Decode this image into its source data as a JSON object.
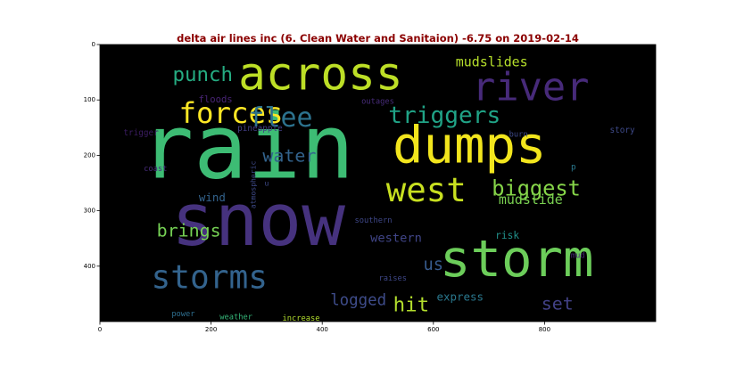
{
  "chart_data": {
    "type": "wordcloud",
    "title": "delta air lines inc (6. Clean Water and Sanitaion) -6.75 on 2019-02-14",
    "title_color": "#8b0000",
    "background": "#000000",
    "xlim": [
      0,
      1000
    ],
    "ylim": [
      500,
      0
    ],
    "x_ticks": [
      0,
      200,
      400,
      600,
      800
    ],
    "y_ticks": [
      0,
      100,
      200,
      300,
      400
    ],
    "words": [
      {
        "text": "rain",
        "x": 265,
        "y": 185,
        "size": 160,
        "color": "#3dbc74"
      },
      {
        "text": "snow",
        "x": 285,
        "y": 318,
        "size": 130,
        "color": "#46327e"
      },
      {
        "text": "dumps",
        "x": 665,
        "y": 182,
        "size": 92,
        "color": "#f2e51d"
      },
      {
        "text": "storm",
        "x": 750,
        "y": 387,
        "size": 92,
        "color": "#6ccd5a"
      },
      {
        "text": "across",
        "x": 397,
        "y": 55,
        "size": 82,
        "color": "#bddf26"
      },
      {
        "text": "river",
        "x": 775,
        "y": 78,
        "size": 70,
        "color": "#472a7a"
      },
      {
        "text": "west",
        "x": 587,
        "y": 262,
        "size": 60,
        "color": "#c8e020"
      },
      {
        "text": "storms",
        "x": 197,
        "y": 420,
        "size": 58,
        "color": "#33638d"
      },
      {
        "text": "forces",
        "x": 236,
        "y": 124,
        "size": 52,
        "color": "#fde725"
      },
      {
        "text": "flee",
        "x": 325,
        "y": 133,
        "size": 48,
        "color": "#2c728e"
      },
      {
        "text": "triggers",
        "x": 620,
        "y": 129,
        "size": 42,
        "color": "#20a386"
      },
      {
        "text": "biggest",
        "x": 785,
        "y": 260,
        "size": 38,
        "color": "#86d549"
      },
      {
        "text": "punch",
        "x": 185,
        "y": 55,
        "size": 36,
        "color": "#25ac82"
      },
      {
        "text": "water",
        "x": 341,
        "y": 200,
        "size": 32,
        "color": "#33638d"
      },
      {
        "text": "brings",
        "x": 160,
        "y": 335,
        "size": 32,
        "color": "#75d054"
      },
      {
        "text": "hit",
        "x": 560,
        "y": 470,
        "size": 36,
        "color": "#b2dd2d"
      },
      {
        "text": "set",
        "x": 823,
        "y": 467,
        "size": 32,
        "color": "#424186"
      },
      {
        "text": "us",
        "x": 600,
        "y": 398,
        "size": 30,
        "color": "#375b8d"
      },
      {
        "text": "logged",
        "x": 465,
        "y": 462,
        "size": 28,
        "color": "#3e4c8a"
      },
      {
        "text": "mudslides",
        "x": 705,
        "y": 31,
        "size": 24,
        "color": "#b5de2b"
      },
      {
        "text": "mudslide",
        "x": 775,
        "y": 280,
        "size": 24,
        "color": "#7ad151"
      },
      {
        "text": "western",
        "x": 533,
        "y": 350,
        "size": 22,
        "color": "#404588"
      },
      {
        "text": "express",
        "x": 648,
        "y": 455,
        "size": 20,
        "color": "#2a788e"
      },
      {
        "text": "wind",
        "x": 202,
        "y": 276,
        "size": 20,
        "color": "#33638d"
      },
      {
        "text": "risk",
        "x": 733,
        "y": 345,
        "size": 18,
        "color": "#21918c"
      },
      {
        "text": "floods",
        "x": 208,
        "y": 100,
        "size": 17,
        "color": "#482475"
      },
      {
        "text": "pineapple",
        "x": 288,
        "y": 152,
        "size": 15,
        "color": "#433e85"
      },
      {
        "text": "trigger",
        "x": 74,
        "y": 160,
        "size": 15,
        "color": "#3b1c62"
      },
      {
        "text": "story",
        "x": 940,
        "y": 155,
        "size": 15,
        "color": "#3e4a89"
      },
      {
        "text": "burn",
        "x": 753,
        "y": 163,
        "size": 14,
        "color": "#3e4a89"
      },
      {
        "text": "coast",
        "x": 100,
        "y": 225,
        "size": 14,
        "color": "#472c7a"
      },
      {
        "text": "atmospheric",
        "x": 275,
        "y": 253,
        "size": 13,
        "color": "#3e4a89",
        "rotate": true
      },
      {
        "text": "u",
        "x": 300,
        "y": 250,
        "size": 13,
        "color": "#3e4a89"
      },
      {
        "text": "outages",
        "x": 500,
        "y": 104,
        "size": 14,
        "color": "#472c7a"
      },
      {
        "text": "southern",
        "x": 492,
        "y": 318,
        "size": 14,
        "color": "#3f4889"
      },
      {
        "text": "mud",
        "x": 860,
        "y": 382,
        "size": 14,
        "color": "#482878"
      },
      {
        "text": "p",
        "x": 852,
        "y": 222,
        "size": 15,
        "color": "#2a788e"
      },
      {
        "text": "raises",
        "x": 527,
        "y": 423,
        "size": 14,
        "color": "#3f4889"
      },
      {
        "text": "power",
        "x": 150,
        "y": 487,
        "size": 14,
        "color": "#2e6e8e"
      },
      {
        "text": "weather",
        "x": 245,
        "y": 493,
        "size": 14,
        "color": "#35b779"
      },
      {
        "text": "increase",
        "x": 362,
        "y": 495,
        "size": 14,
        "color": "#b2dd2d"
      }
    ]
  }
}
